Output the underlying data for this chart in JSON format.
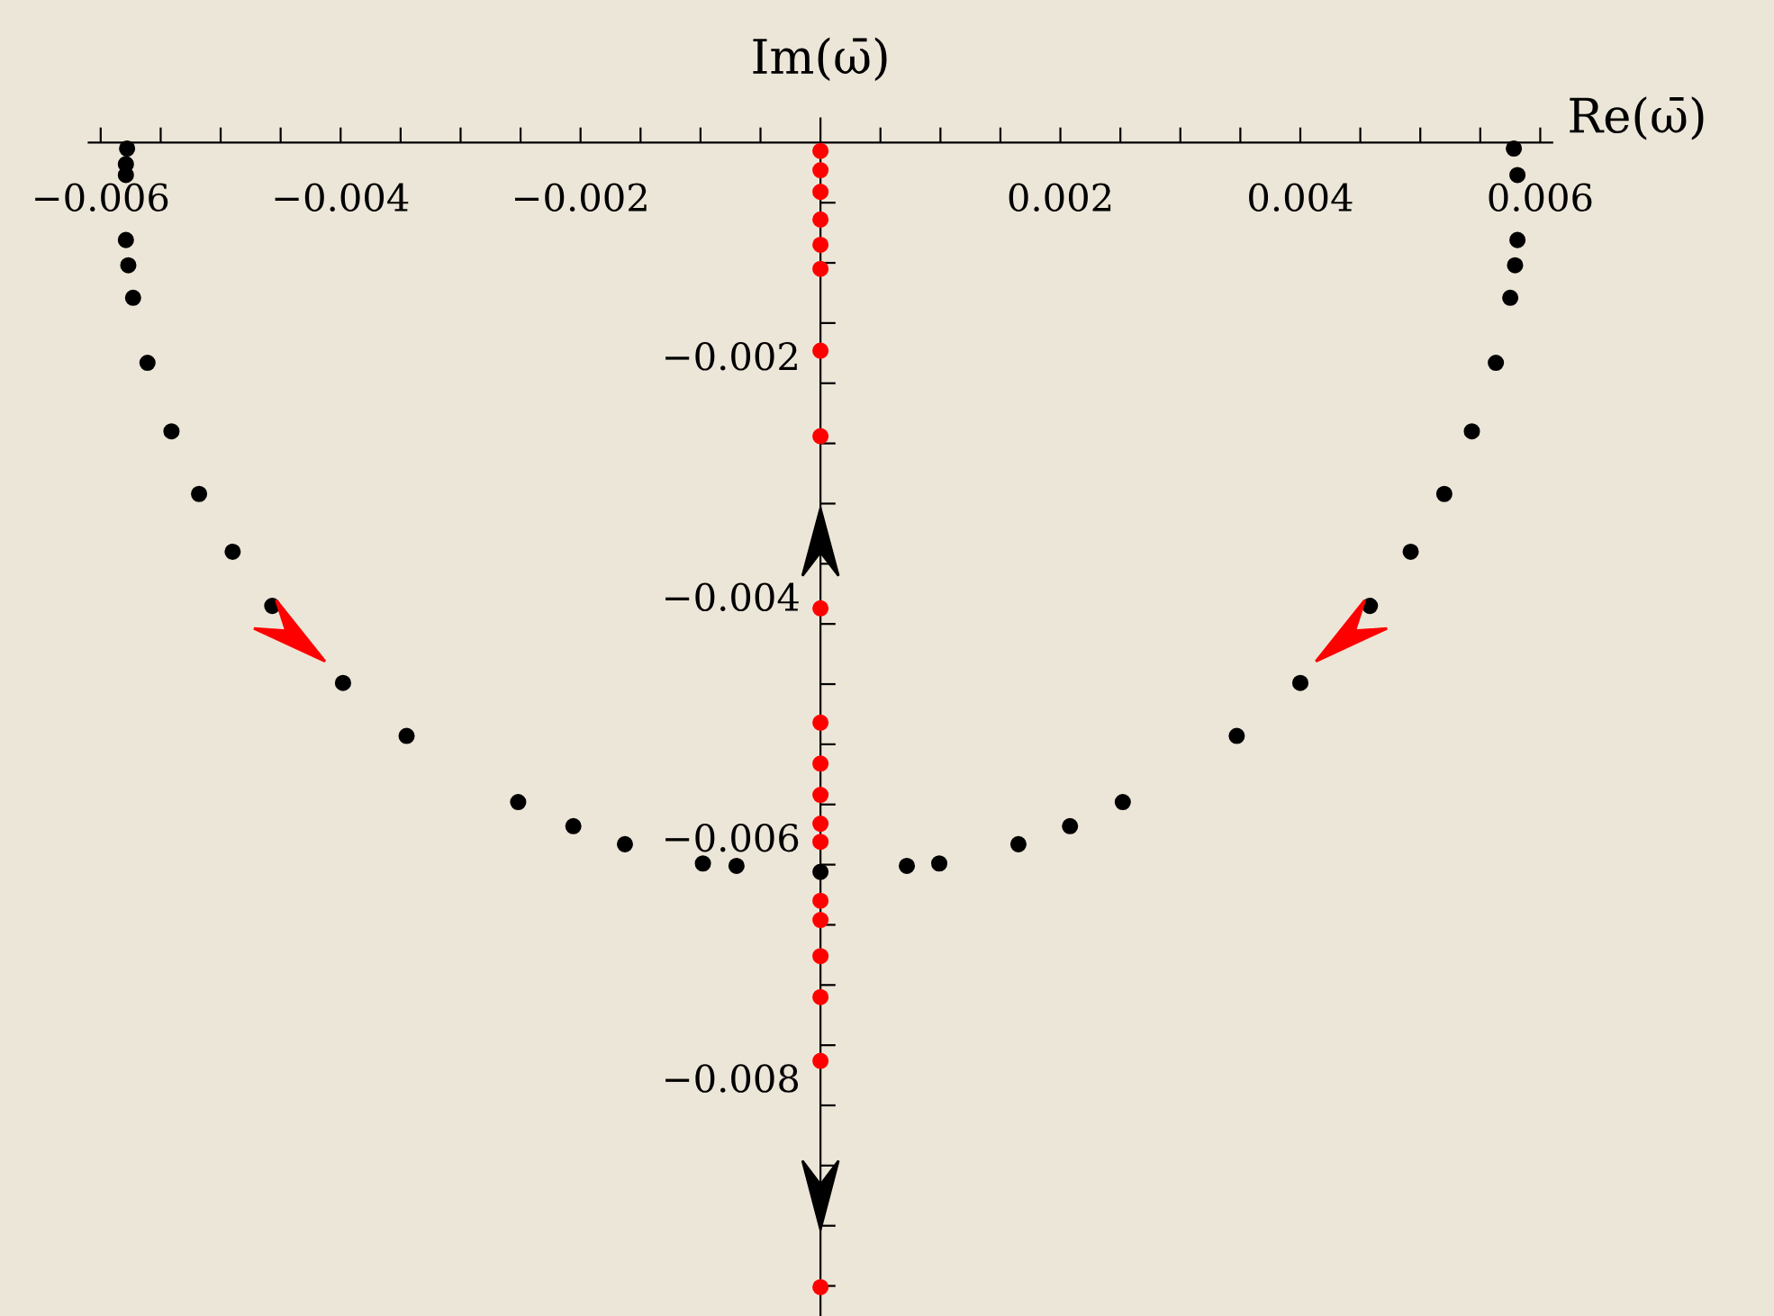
{
  "chart_data": {
    "type": "scatter",
    "xlabel": "Re(ω̄)",
    "ylabel": "Im(ω̄)",
    "marker": "circle",
    "grid": false,
    "legend": false,
    "xlim": [
      -0.0061,
      0.0061
    ],
    "ylim": [
      -0.00975,
      0.0002
    ],
    "xticks": [
      -0.006,
      {
        "value": -0.0055,
        "label": null
      },
      {
        "value": -0.005,
        "label": null
      },
      {
        "value": -0.0045,
        "label": null
      },
      -0.004,
      {
        "value": -0.0035,
        "label": null
      },
      {
        "value": -0.003,
        "label": null
      },
      {
        "value": -0.0025,
        "label": null
      },
      -0.002,
      {
        "value": -0.0015,
        "label": null
      },
      {
        "value": -0.001,
        "label": null
      },
      {
        "value": -0.0005,
        "label": null
      },
      {
        "value": 0.0005,
        "label": null
      },
      {
        "value": 0.001,
        "label": null
      },
      {
        "value": 0.0015,
        "label": null
      },
      0.002,
      {
        "value": 0.0025,
        "label": null
      },
      {
        "value": 0.003,
        "label": null
      },
      {
        "value": 0.0035,
        "label": null
      },
      0.004,
      {
        "value": 0.0045,
        "label": null
      },
      {
        "value": 0.005,
        "label": null
      },
      {
        "value": 0.0055,
        "label": null
      },
      0.006
    ],
    "yticks": [
      {
        "value": -0.0005,
        "label": null
      },
      {
        "value": -0.001,
        "label": null
      },
      {
        "value": -0.0015,
        "label": null
      },
      -0.002,
      {
        "value": -0.0025,
        "label": null
      },
      {
        "value": -0.003,
        "label": null
      },
      {
        "value": -0.0035,
        "label": null
      },
      -0.004,
      {
        "value": -0.0045,
        "label": null
      },
      {
        "value": -0.005,
        "label": null
      },
      {
        "value": -0.0055,
        "label": null
      },
      -0.006,
      {
        "value": -0.0065,
        "label": null
      },
      {
        "value": -0.007,
        "label": null
      },
      {
        "value": -0.0075,
        "label": null
      },
      -0.008,
      {
        "value": -0.0085,
        "label": null
      },
      {
        "value": -0.009,
        "label": null
      },
      {
        "value": -0.0095,
        "label": null
      }
    ],
    "series": [
      {
        "color": "#000000",
        "x": [
          -0.00578,
          -0.00579,
          -0.00579,
          -0.00579,
          -0.00577,
          -0.00573,
          -0.00561,
          -0.00541,
          -0.00518,
          -0.0049,
          -0.00457,
          -0.00398,
          -0.00345,
          -0.00252,
          -0.00206,
          -0.00163,
          -0.00098,
          -0.0007,
          0.0,
          0.00072,
          0.00099,
          0.00165,
          0.00208,
          0.00252,
          0.00347,
          0.004,
          0.00458,
          0.00492,
          0.0052,
          0.00543,
          0.00563,
          0.00575,
          0.00579,
          0.00581,
          0.00581,
          0.00578
        ],
        "values": [
          -5e-05,
          -0.00018,
          -0.00027,
          -0.00081,
          -0.00102,
          -0.00129,
          -0.00183,
          -0.0024,
          -0.00292,
          -0.0034,
          -0.00385,
          -0.00449,
          -0.00493,
          -0.00548,
          -0.00568,
          -0.00583,
          -0.00599,
          -0.00601,
          -0.00606,
          -0.00601,
          -0.00599,
          -0.00583,
          -0.00568,
          -0.00548,
          -0.00493,
          -0.00449,
          -0.00385,
          -0.0034,
          -0.00292,
          -0.0024,
          -0.00183,
          -0.00129,
          -0.00102,
          -0.00081,
          -0.00027,
          -5e-05
        ]
      },
      {
        "color": "#ff0000",
        "x": [
          0,
          0,
          0,
          0,
          0,
          0,
          0,
          0,
          0,
          0,
          0,
          0,
          0,
          0,
          0,
          0,
          0,
          0,
          0,
          0
        ],
        "values": [
          -7e-05,
          -0.00023,
          -0.00041,
          -0.00064,
          -0.00085,
          -0.00105,
          -0.00173,
          -0.00244,
          -0.00387,
          -0.00482,
          -0.00516,
          -0.00542,
          -0.00566,
          -0.00581,
          -0.0063,
          -0.00646,
          -0.00676,
          -0.0071,
          -0.00763,
          -0.00951
        ]
      }
    ]
  }
}
